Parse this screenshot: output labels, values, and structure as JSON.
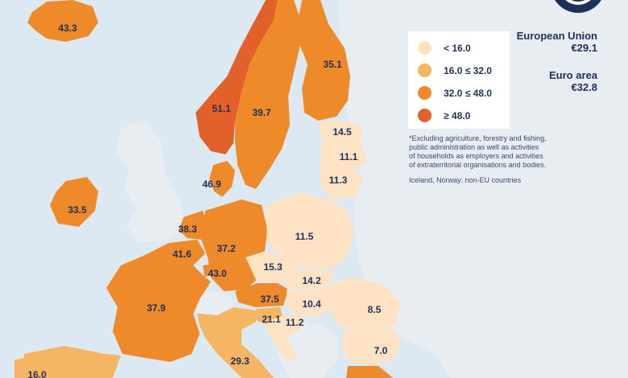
{
  "colors": {
    "sea": "#dce9f2",
    "non_eu_land": "#e8edf2",
    "lt16": "#fde2c3",
    "16to32": "#f6b562",
    "32to48": "#ee8a2a",
    "gte48": "#e2612a",
    "text": "#1f2f5c"
  },
  "legend": {
    "items": [
      {
        "label": "< 16.0",
        "color": "#fde2c3"
      },
      {
        "label": "16.0 ≤ 32.0",
        "color": "#f6b562"
      },
      {
        "label": "32.0 ≤ 48.0",
        "color": "#ee8a2a"
      },
      {
        "label": "≥ 48.0",
        "color": "#e2612a"
      }
    ]
  },
  "summary": {
    "eu_label": "European Union",
    "eu_value": "€29.1",
    "ea_label": "Euro area",
    "ea_value": "€32.8"
  },
  "footnote": {
    "line1": "*Excluding agriculture, forestry and fishing,",
    "line2": "public administration as well as activities",
    "line3": "of households as employers and activities",
    "line4": "of extraterritorial organisations and bodies.",
    "non_eu_note": "Iceland, Norway: non-EU countries"
  },
  "logo": {
    "icon": "eurostat-logo-icon"
  },
  "countries": [
    {
      "id": "iceland",
      "value": "43.3",
      "class": "32to48"
    },
    {
      "id": "norway",
      "value": "51.1",
      "class": "gte48"
    },
    {
      "id": "sweden",
      "value": "39.7",
      "class": "32to48"
    },
    {
      "id": "finland",
      "value": "35.1",
      "class": "32to48"
    },
    {
      "id": "estonia",
      "value": "14.5",
      "class": "lt16"
    },
    {
      "id": "latvia",
      "value": "11.1",
      "class": "lt16"
    },
    {
      "id": "lithuania",
      "value": "11.3",
      "class": "lt16"
    },
    {
      "id": "denmark",
      "value": "46.9",
      "class": "32to48"
    },
    {
      "id": "ireland",
      "value": "33.5",
      "class": "32to48"
    },
    {
      "id": "netherlands",
      "value": "38.3",
      "class": "32to48"
    },
    {
      "id": "belgium",
      "value": "41.6",
      "class": "32to48"
    },
    {
      "id": "luxembourg",
      "value": "43.0",
      "class": "32to48"
    },
    {
      "id": "germany",
      "value": "37.2",
      "class": "32to48"
    },
    {
      "id": "poland",
      "value": "11.5",
      "class": "lt16"
    },
    {
      "id": "czechia",
      "value": "15.3",
      "class": "lt16"
    },
    {
      "id": "slovakia",
      "value": "14.2",
      "class": "lt16"
    },
    {
      "id": "hungary",
      "value": "10.4",
      "class": "lt16"
    },
    {
      "id": "austria",
      "value": "37.5",
      "class": "32to48"
    },
    {
      "id": "slovenia",
      "value": "21.1",
      "class": "16to32"
    },
    {
      "id": "croatia",
      "value": "11.2",
      "class": "lt16"
    },
    {
      "id": "romania",
      "value": "8.5",
      "class": "lt16"
    },
    {
      "id": "bulgaria",
      "value": "7.0",
      "class": "lt16"
    },
    {
      "id": "france",
      "value": "37.9",
      "class": "32to48"
    },
    {
      "id": "italy",
      "value": "29.3",
      "class": "16to32"
    },
    {
      "id": "spain",
      "value": "16.0",
      "class": "16to32"
    }
  ]
}
